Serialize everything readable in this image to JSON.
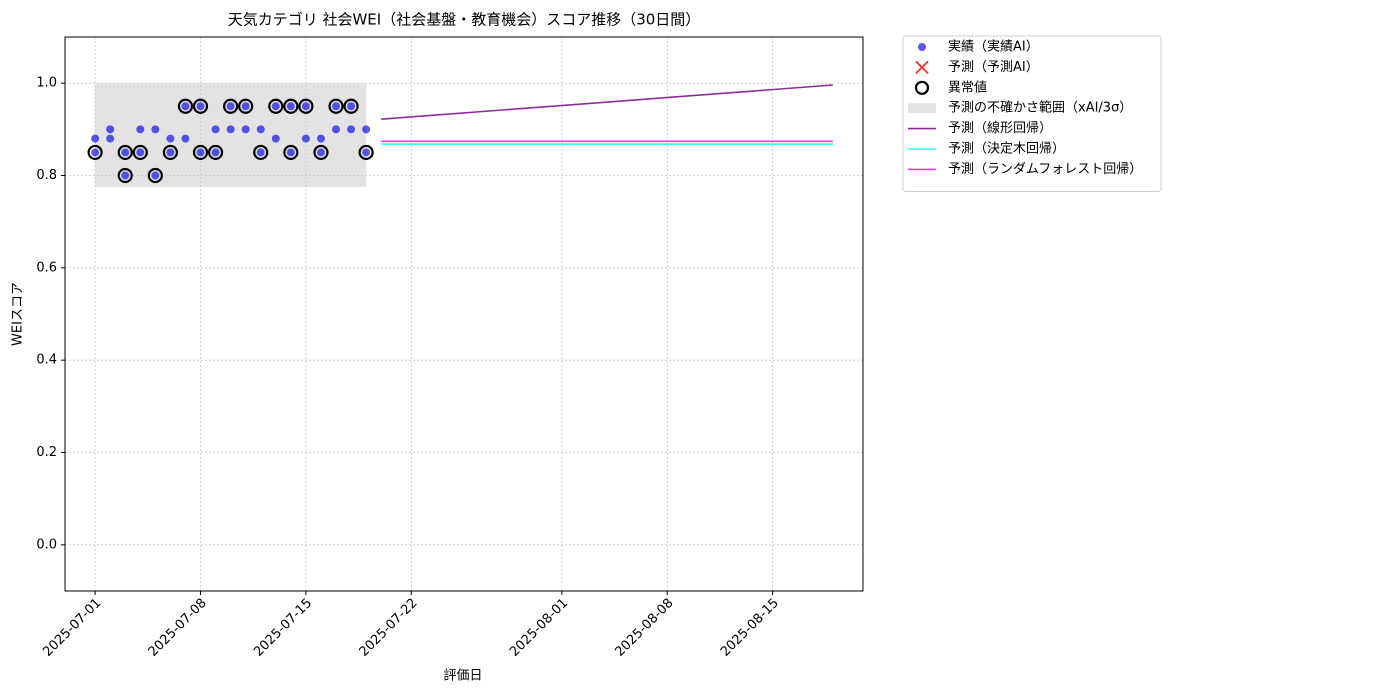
{
  "chart_data": {
    "type": "scatter",
    "title": "天気カテゴリ 社会WEI（社会基盤・教育機会）スコア推移（30日間）",
    "x_label": "評価日",
    "y_label": "WEIスコア",
    "xlim": [
      "2025-06-29",
      "2025-08-21"
    ],
    "xticks": [
      "2025-07-01",
      "2025-07-08",
      "2025-07-15",
      "2025-07-22",
      "2025-08-01",
      "2025-08-08",
      "2025-08-15"
    ],
    "ylim": [
      -0.1,
      1.1
    ],
    "yticks": [
      {
        "value": 0,
        "label": "0.0"
      },
      0.2,
      0.4,
      0.6,
      0.8,
      {
        "value": 1,
        "label": "1.0"
      }
    ],
    "grid": true,
    "legend": "outside-upper-right",
    "series": [
      {
        "name": "実績（実績AI）",
        "type": "scatter",
        "marker": "o",
        "color": "#1f1fe0",
        "x": [
          "2025-07-01",
          "2025-07-01",
          "2025-07-02",
          "2025-07-02",
          "2025-07-03",
          "2025-07-03",
          "2025-07-04",
          "2025-07-04",
          "2025-07-05",
          "2025-07-05",
          "2025-07-06",
          "2025-07-06",
          "2025-07-07",
          "2025-07-07",
          "2025-07-08",
          "2025-07-08",
          "2025-07-09",
          "2025-07-09",
          "2025-07-10",
          "2025-07-10",
          "2025-07-11",
          "2025-07-11",
          "2025-07-12",
          "2025-07-12",
          "2025-07-13",
          "2025-07-13",
          "2025-07-14",
          "2025-07-14",
          "2025-07-15",
          "2025-07-15",
          "2025-07-16",
          "2025-07-16",
          "2025-07-17",
          "2025-07-17",
          "2025-07-18",
          "2025-07-18",
          "2025-07-19",
          "2025-07-19"
        ],
        "values": [
          0.85,
          0.88,
          0.88,
          0.9,
          0.85,
          0.8,
          0.9,
          0.85,
          0.8,
          0.9,
          0.85,
          0.88,
          0.95,
          0.88,
          0.85,
          0.95,
          0.9,
          0.85,
          0.95,
          0.9,
          0.9,
          0.95,
          0.85,
          0.9,
          0.95,
          0.88,
          0.95,
          0.85,
          0.95,
          0.88,
          0.85,
          0.88,
          0.95,
          0.9,
          0.95,
          0.9,
          0.85,
          0.9
        ]
      },
      {
        "name": "予測（予測AI）",
        "type": "scatter",
        "marker": "x",
        "color": "#f03030",
        "x": [],
        "values": []
      },
      {
        "name": "異常値",
        "type": "scatter",
        "marker": "hollow-o",
        "color": "#000000",
        "x": [
          "2025-07-01",
          "2025-07-03",
          "2025-07-03",
          "2025-07-04",
          "2025-07-05",
          "2025-07-06",
          "2025-07-07",
          "2025-07-08",
          "2025-07-08",
          "2025-07-09",
          "2025-07-10",
          "2025-07-11",
          "2025-07-12",
          "2025-07-13",
          "2025-07-14",
          "2025-07-14",
          "2025-07-15",
          "2025-07-16",
          "2025-07-17",
          "2025-07-18",
          "2025-07-19"
        ],
        "values": [
          0.85,
          0.85,
          0.8,
          0.85,
          0.8,
          0.85,
          0.95,
          0.95,
          0.85,
          0.85,
          0.95,
          0.95,
          0.85,
          0.95,
          0.95,
          0.85,
          0.95,
          0.85,
          0.95,
          0.95,
          0.85
        ]
      },
      {
        "name": "予測の不確かさ範囲（xAI/3σ）",
        "type": "band",
        "color": "#c8c8c8",
        "x": [
          "2025-07-01",
          "2025-07-19"
        ],
        "values": [
          0.775,
          1.0
        ]
      },
      {
        "name": "予測（線形回帰）",
        "type": "line",
        "color": "#8e2a9e",
        "x": [
          "2025-07-20",
          "2025-08-19"
        ],
        "values": [
          0.922,
          0.996
        ]
      },
      {
        "name": "予測（決定木回帰）",
        "type": "line",
        "color": "#33ffff",
        "x": [
          "2025-07-20",
          "2025-08-19"
        ],
        "values": [
          0.868,
          0.868
        ]
      },
      {
        "name": "予測（ランダムフォレスト回帰）",
        "type": "line",
        "color": "#ff33ff",
        "x": [
          "2025-07-20",
          "2025-08-19"
        ],
        "values": [
          0.874,
          0.874
        ]
      }
    ]
  }
}
